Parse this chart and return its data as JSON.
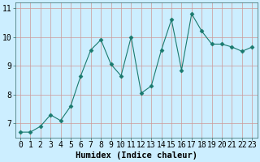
{
  "x": [
    0,
    1,
    2,
    3,
    4,
    5,
    6,
    7,
    8,
    9,
    10,
    11,
    12,
    13,
    14,
    15,
    16,
    17,
    18,
    19,
    20,
    21,
    22,
    23
  ],
  "y": [
    6.7,
    6.7,
    6.9,
    7.3,
    7.1,
    7.6,
    8.65,
    9.55,
    9.9,
    9.05,
    8.65,
    10.0,
    8.05,
    8.3,
    9.55,
    10.6,
    8.85,
    10.8,
    10.2,
    9.75,
    9.75,
    9.65,
    9.5,
    9.65
  ],
  "line_color": "#1a7a6e",
  "marker": "D",
  "marker_size": 2.5,
  "bg_color": "#cceeff",
  "grid_color": "#cc9999",
  "xlabel": "Humidex (Indice chaleur)",
  "ylim": [
    6.5,
    11.2
  ],
  "xlim": [
    -0.5,
    23.5
  ],
  "yticks": [
    7,
    8,
    9,
    10,
    11
  ],
  "xtick_labels": [
    "0",
    "1",
    "2",
    "3",
    "4",
    "5",
    "6",
    "7",
    "8",
    "9",
    "10",
    "11",
    "12",
    "13",
    "14",
    "15",
    "16",
    "17",
    "18",
    "19",
    "20",
    "21",
    "22",
    "23"
  ],
  "xlabel_fontsize": 7.5,
  "tick_fontsize": 7
}
